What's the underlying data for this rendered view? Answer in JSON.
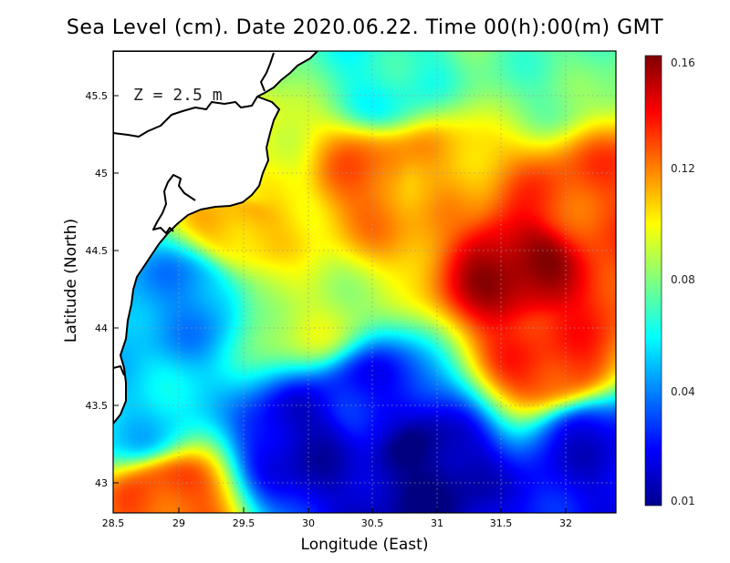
{
  "title": "Sea Level (cm). Date 2020.06.22. Time 00(h):00(m) GMT",
  "annotation": "Z = 2.5 m",
  "chart_data": {
    "type": "heatmap",
    "xlabel": "Longitude (East)",
    "ylabel": "Latitude (North)",
    "xlim": [
      28.5,
      32.4
    ],
    "ylim": [
      42.8,
      45.8
    ],
    "xticks": [
      "28.5",
      "29",
      "29.5",
      "30",
      "30.5",
      "31",
      "31.5",
      "32"
    ],
    "yticks": [
      "43",
      "43.5",
      "44",
      "44.5",
      "45",
      "45.5"
    ],
    "grid": true,
    "colorbar": {
      "min": 0.01,
      "max": 0.16,
      "ticks": [
        "0.01",
        "0.04",
        "0.08",
        "0.12",
        "0.16"
      ],
      "colormap": "jet"
    },
    "field_features": [
      {
        "lon": 31.65,
        "lat": 44.38,
        "value": 0.155
      },
      {
        "lon": 31.9,
        "lat": 43.8,
        "value": 0.135
      },
      {
        "lon": 32.2,
        "lat": 44.8,
        "value": 0.13
      },
      {
        "lon": 30.5,
        "lat": 44.98,
        "value": 0.125
      },
      {
        "lon": 31.0,
        "lat": 44.95,
        "value": 0.115
      },
      {
        "lon": 29.5,
        "lat": 44.7,
        "value": 0.115
      },
      {
        "lon": 29.6,
        "lat": 44.95,
        "value": 0.1
      },
      {
        "lon": 28.9,
        "lat": 42.9,
        "value": 0.13
      },
      {
        "lon": 30.9,
        "lat": 43.1,
        "value": 0.012
      },
      {
        "lon": 30.0,
        "lat": 43.25,
        "value": 0.02
      },
      {
        "lon": 30.5,
        "lat": 43.5,
        "value": 0.03
      },
      {
        "lon": 32.2,
        "lat": 43.2,
        "value": 0.025
      },
      {
        "lon": 29.05,
        "lat": 44.2,
        "value": 0.05
      },
      {
        "lon": 28.7,
        "lat": 43.4,
        "value": 0.06
      },
      {
        "lon": 30.6,
        "lat": 45.6,
        "value": 0.07
      },
      {
        "lon": 31.8,
        "lat": 45.7,
        "value": 0.08
      },
      {
        "lon": 30.0,
        "lat": 44.1,
        "value": 0.095
      }
    ]
  }
}
